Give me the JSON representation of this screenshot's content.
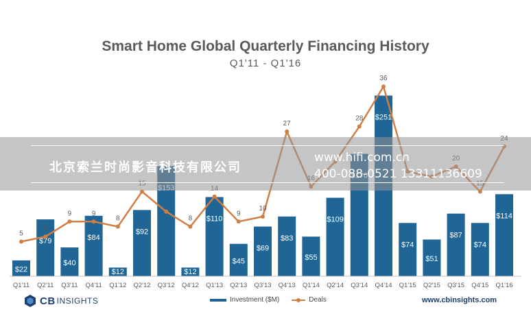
{
  "title": "Smart Home Global Quarterly Financing History",
  "subtitle": "Q1'11 - Q1'16",
  "chart_data": {
    "type": "bar",
    "title": "Smart Home Global Quarterly Financing History",
    "subtitle": "Q1'11 - Q1'16",
    "categories": [
      "Q1'11",
      "Q2'11",
      "Q3'11",
      "Q4'11",
      "Q1'12",
      "Q2'12",
      "Q3'12",
      "Q4'12",
      "Q1'13",
      "Q2'13",
      "Q3'13",
      "Q4'13",
      "Q1'14",
      "Q2'14",
      "Q3'14",
      "Q4'14",
      "Q1'15",
      "Q2'15",
      "Q3'15",
      "Q4'15",
      "Q1'16"
    ],
    "series": [
      {
        "name": "Investment ($M)",
        "type": "bar",
        "color": "#1f6596",
        "values": [
          22,
          79,
          40,
          84,
          12,
          92,
          153,
          12,
          110,
          45,
          69,
          83,
          55,
          109,
          170,
          251,
          74,
          51,
          87,
          74,
          114
        ],
        "labels": [
          "$22",
          "$79",
          "$40",
          "$84",
          "$12",
          "$92",
          "$153",
          "$12",
          "$110",
          "$45",
          "$69",
          "$83",
          "$55",
          "$109",
          "$170",
          "$251",
          "$74",
          "$51",
          "$87",
          "$74",
          "$114"
        ]
      },
      {
        "name": "Deals",
        "type": "line",
        "color": "#cf7f45",
        "values": [
          5,
          6,
          9,
          9,
          8,
          15,
          11,
          8,
          14,
          9,
          10,
          27,
          16,
          21,
          28,
          36,
          19,
          18,
          20,
          15,
          24
        ],
        "labels": [
          "5",
          "6",
          "9",
          "9",
          "8",
          "15",
          "",
          "8",
          "14",
          "9",
          "10",
          "27",
          "16",
          "",
          "28",
          "36",
          "",
          "",
          "20",
          "15",
          "24"
        ]
      }
    ],
    "legend": "bottom-center",
    "grid": false
  },
  "watermark": {
    "company": "北京索兰时尚影音科技有限公司",
    "url": "www.hifi.com.cn",
    "phone": "400-088-0521 13311136609"
  },
  "footer": {
    "logo_text": "CB",
    "logo_text2": "INSIGHTS",
    "legend_investment": "Investment ($M)",
    "legend_deals": "Deals",
    "url": "www.cbinsights.com"
  }
}
